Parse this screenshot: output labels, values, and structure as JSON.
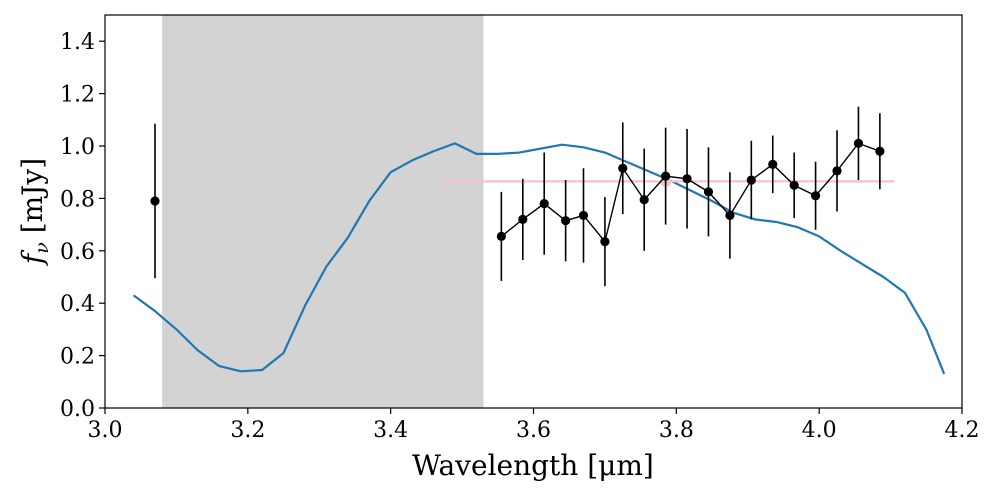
{
  "chart_data": {
    "type": "line",
    "title": "",
    "xlabel": "Wavelength [μm]",
    "ylabel": "f_ν [mJy]",
    "xlim": [
      3.0,
      4.2
    ],
    "ylim": [
      0.0,
      1.5
    ],
    "xticks": [
      3.0,
      3.2,
      3.4,
      3.6,
      3.8,
      4.0,
      4.2
    ],
    "yticks": [
      0.0,
      0.2,
      0.4,
      0.6,
      0.8,
      1.0,
      1.2,
      1.4
    ],
    "xtick_labels": [
      "3.0",
      "3.2",
      "3.4",
      "3.6",
      "3.8",
      "4.0",
      "4.2"
    ],
    "ytick_labels": [
      "0.0",
      "0.2",
      "0.4",
      "0.6",
      "0.8",
      "1.0",
      "1.2",
      "1.4"
    ],
    "grid": false,
    "legend": "none",
    "shaded_region": {
      "x": [
        3.08,
        3.53
      ],
      "color": "#d3d3d3"
    },
    "model_curve": {
      "color": "#1f77b4",
      "x": [
        3.04,
        3.07,
        3.1,
        3.13,
        3.16,
        3.19,
        3.22,
        3.25,
        3.28,
        3.31,
        3.34,
        3.37,
        3.4,
        3.43,
        3.46,
        3.49,
        3.52,
        3.55,
        3.58,
        3.61,
        3.64,
        3.67,
        3.7,
        3.73,
        3.76,
        3.79,
        3.82,
        3.85,
        3.88,
        3.91,
        3.94,
        3.97,
        4.0,
        4.03,
        4.06,
        4.09,
        4.12,
        4.15,
        4.175
      ],
      "y": [
        0.43,
        0.37,
        0.3,
        0.22,
        0.16,
        0.14,
        0.145,
        0.21,
        0.39,
        0.54,
        0.65,
        0.79,
        0.9,
        0.945,
        0.98,
        1.01,
        0.97,
        0.97,
        0.975,
        0.99,
        1.005,
        0.995,
        0.975,
        0.94,
        0.905,
        0.87,
        0.83,
        0.79,
        0.745,
        0.72,
        0.71,
        0.69,
        0.655,
        0.6,
        0.55,
        0.5,
        0.44,
        0.3,
        0.13
      ]
    },
    "isolated_point": {
      "x": 3.07,
      "y": 0.79,
      "err": 0.295
    },
    "series": [
      {
        "color": "#000000",
        "x": [
          3.555,
          3.585,
          3.615,
          3.645,
          3.67,
          3.7,
          3.725,
          3.755,
          3.785,
          3.815,
          3.845,
          3.875,
          3.905,
          3.935,
          3.965,
          3.995,
          4.025,
          4.055,
          4.085
        ],
        "y": [
          0.655,
          0.72,
          0.78,
          0.715,
          0.735,
          0.635,
          0.915,
          0.795,
          0.885,
          0.875,
          0.825,
          0.735,
          0.87,
          0.93,
          0.85,
          0.81,
          0.905,
          1.01,
          0.98
        ],
        "err": [
          0.17,
          0.155,
          0.195,
          0.155,
          0.18,
          0.17,
          0.175,
          0.195,
          0.185,
          0.19,
          0.17,
          0.165,
          0.15,
          0.11,
          0.125,
          0.13,
          0.155,
          0.14,
          0.145
        ]
      }
    ],
    "pink_band": {
      "color": "#f5c2cc",
      "x": [
        3.47,
        4.105
      ],
      "y": 0.865,
      "point_x": 3.785,
      "point_y": 0.865
    }
  }
}
